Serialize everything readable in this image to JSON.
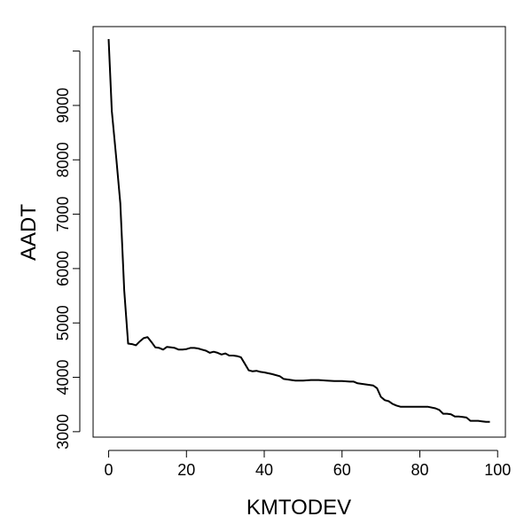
{
  "chart_data": {
    "type": "line",
    "title": "",
    "xlabel": "KMTODEV",
    "ylabel": "AADT",
    "xlim": [
      -4,
      102
    ],
    "ylim": [
      2900,
      10450
    ],
    "grid": false,
    "xticks": [
      0,
      20,
      40,
      60,
      80,
      100
    ],
    "yticks": [
      3000,
      4000,
      5000,
      6000,
      7000,
      8000,
      9000
    ],
    "series": [
      {
        "x": [
          0,
          0.8,
          2,
          3,
          4,
          5,
          6,
          7,
          8,
          9,
          10,
          11,
          12,
          13,
          14,
          15,
          16,
          17,
          18,
          19,
          20,
          21,
          22,
          23,
          24,
          25,
          26,
          27,
          28,
          29,
          30,
          31,
          32,
          33,
          34,
          35,
          36,
          37,
          38,
          39,
          40,
          42,
          44,
          45,
          46,
          48,
          50,
          52,
          54,
          56,
          58,
          60,
          62,
          63,
          64,
          66,
          68,
          69,
          70,
          71,
          72,
          73,
          74,
          75,
          76,
          78,
          80,
          82,
          84,
          85,
          86,
          87,
          88,
          89,
          90,
          91,
          92,
          93,
          94,
          95,
          96,
          97,
          98
        ],
        "values": [
          10220,
          8900,
          8000,
          7200,
          5600,
          4620,
          4610,
          4590,
          4660,
          4720,
          4740,
          4650,
          4550,
          4540,
          4510,
          4560,
          4550,
          4540,
          4510,
          4510,
          4520,
          4540,
          4540,
          4530,
          4510,
          4490,
          4450,
          4470,
          4450,
          4420,
          4440,
          4400,
          4400,
          4390,
          4370,
          4250,
          4130,
          4110,
          4120,
          4100,
          4090,
          4060,
          4020,
          3970,
          3960,
          3940,
          3940,
          3950,
          3950,
          3940,
          3930,
          3930,
          3920,
          3920,
          3890,
          3870,
          3850,
          3800,
          3640,
          3580,
          3560,
          3510,
          3480,
          3460,
          3460,
          3460,
          3460,
          3460,
          3430,
          3400,
          3330,
          3330,
          3320,
          3280,
          3280,
          3270,
          3260,
          3200,
          3200,
          3200,
          3190,
          3180,
          3180
        ]
      }
    ]
  }
}
